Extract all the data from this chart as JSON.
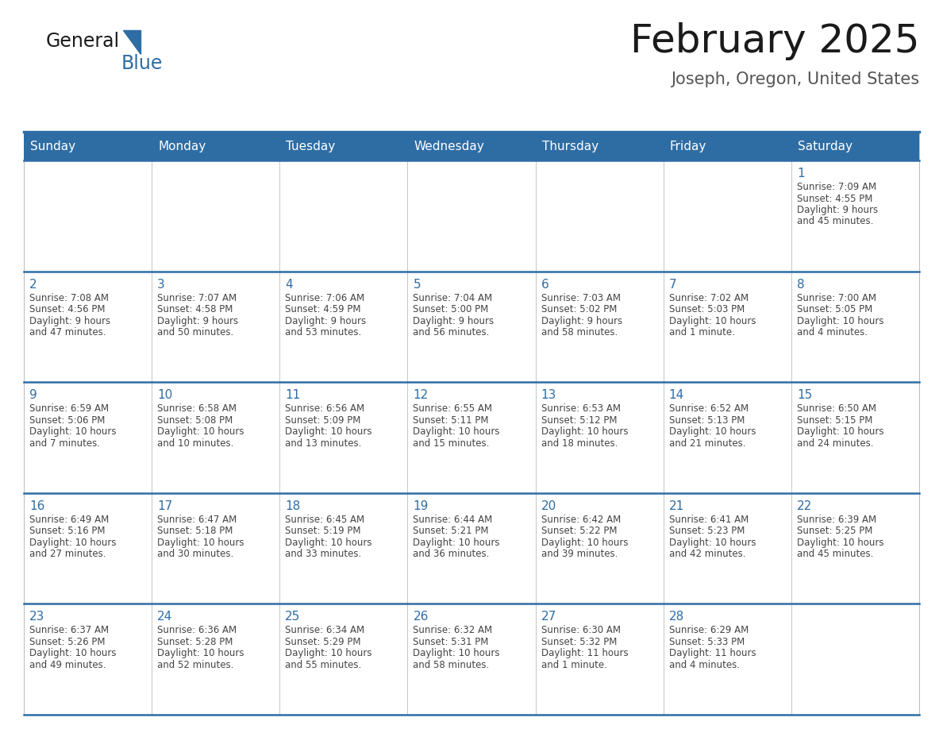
{
  "title": "February 2025",
  "subtitle": "Joseph, Oregon, United States",
  "days_of_week": [
    "Sunday",
    "Monday",
    "Tuesday",
    "Wednesday",
    "Thursday",
    "Friday",
    "Saturday"
  ],
  "header_bg": "#2e6da4",
  "header_text": "#ffffff",
  "cell_bg": "#ffffff",
  "row1_top_bg": "#eeeeee",
  "day_num_color": "#2e6da4",
  "text_color": "#444444",
  "border_color": "#aaaaaa",
  "row_top_border_color": "#2e6da4",
  "subtitle_color": "#555555",
  "calendar_data": [
    [
      null,
      null,
      null,
      null,
      null,
      null,
      {
        "day": 1,
        "sunrise": "7:09 AM",
        "sunset": "4:55 PM",
        "daylight": "9 hours and 45 minutes."
      }
    ],
    [
      {
        "day": 2,
        "sunrise": "7:08 AM",
        "sunset": "4:56 PM",
        "daylight": "9 hours and 47 minutes."
      },
      {
        "day": 3,
        "sunrise": "7:07 AM",
        "sunset": "4:58 PM",
        "daylight": "9 hours and 50 minutes."
      },
      {
        "day": 4,
        "sunrise": "7:06 AM",
        "sunset": "4:59 PM",
        "daylight": "9 hours and 53 minutes."
      },
      {
        "day": 5,
        "sunrise": "7:04 AM",
        "sunset": "5:00 PM",
        "daylight": "9 hours and 56 minutes."
      },
      {
        "day": 6,
        "sunrise": "7:03 AM",
        "sunset": "5:02 PM",
        "daylight": "9 hours and 58 minutes."
      },
      {
        "day": 7,
        "sunrise": "7:02 AM",
        "sunset": "5:03 PM",
        "daylight": "10 hours and 1 minute."
      },
      {
        "day": 8,
        "sunrise": "7:00 AM",
        "sunset": "5:05 PM",
        "daylight": "10 hours and 4 minutes."
      }
    ],
    [
      {
        "day": 9,
        "sunrise": "6:59 AM",
        "sunset": "5:06 PM",
        "daylight": "10 hours and 7 minutes."
      },
      {
        "day": 10,
        "sunrise": "6:58 AM",
        "sunset": "5:08 PM",
        "daylight": "10 hours and 10 minutes."
      },
      {
        "day": 11,
        "sunrise": "6:56 AM",
        "sunset": "5:09 PM",
        "daylight": "10 hours and 13 minutes."
      },
      {
        "day": 12,
        "sunrise": "6:55 AM",
        "sunset": "5:11 PM",
        "daylight": "10 hours and 15 minutes."
      },
      {
        "day": 13,
        "sunrise": "6:53 AM",
        "sunset": "5:12 PM",
        "daylight": "10 hours and 18 minutes."
      },
      {
        "day": 14,
        "sunrise": "6:52 AM",
        "sunset": "5:13 PM",
        "daylight": "10 hours and 21 minutes."
      },
      {
        "day": 15,
        "sunrise": "6:50 AM",
        "sunset": "5:15 PM",
        "daylight": "10 hours and 24 minutes."
      }
    ],
    [
      {
        "day": 16,
        "sunrise": "6:49 AM",
        "sunset": "5:16 PM",
        "daylight": "10 hours and 27 minutes."
      },
      {
        "day": 17,
        "sunrise": "6:47 AM",
        "sunset": "5:18 PM",
        "daylight": "10 hours and 30 minutes."
      },
      {
        "day": 18,
        "sunrise": "6:45 AM",
        "sunset": "5:19 PM",
        "daylight": "10 hours and 33 minutes."
      },
      {
        "day": 19,
        "sunrise": "6:44 AM",
        "sunset": "5:21 PM",
        "daylight": "10 hours and 36 minutes."
      },
      {
        "day": 20,
        "sunrise": "6:42 AM",
        "sunset": "5:22 PM",
        "daylight": "10 hours and 39 minutes."
      },
      {
        "day": 21,
        "sunrise": "6:41 AM",
        "sunset": "5:23 PM",
        "daylight": "10 hours and 42 minutes."
      },
      {
        "day": 22,
        "sunrise": "6:39 AM",
        "sunset": "5:25 PM",
        "daylight": "10 hours and 45 minutes."
      }
    ],
    [
      {
        "day": 23,
        "sunrise": "6:37 AM",
        "sunset": "5:26 PM",
        "daylight": "10 hours and 49 minutes."
      },
      {
        "day": 24,
        "sunrise": "6:36 AM",
        "sunset": "5:28 PM",
        "daylight": "10 hours and 52 minutes."
      },
      {
        "day": 25,
        "sunrise": "6:34 AM",
        "sunset": "5:29 PM",
        "daylight": "10 hours and 55 minutes."
      },
      {
        "day": 26,
        "sunrise": "6:32 AM",
        "sunset": "5:31 PM",
        "daylight": "10 hours and 58 minutes."
      },
      {
        "day": 27,
        "sunrise": "6:30 AM",
        "sunset": "5:32 PM",
        "daylight": "11 hours and 1 minute."
      },
      {
        "day": 28,
        "sunrise": "6:29 AM",
        "sunset": "5:33 PM",
        "daylight": "11 hours and 4 minutes."
      },
      null
    ]
  ],
  "logo_text_general": "General",
  "logo_text_blue": "Blue",
  "logo_color_general": "#1a1a1a",
  "logo_color_blue": "#2e6da4",
  "logo_triangle_color": "#2e6da4",
  "title_fontsize": 36,
  "subtitle_fontsize": 15,
  "header_fontsize": 11,
  "day_num_fontsize": 11,
  "cell_text_fontsize": 8.5
}
